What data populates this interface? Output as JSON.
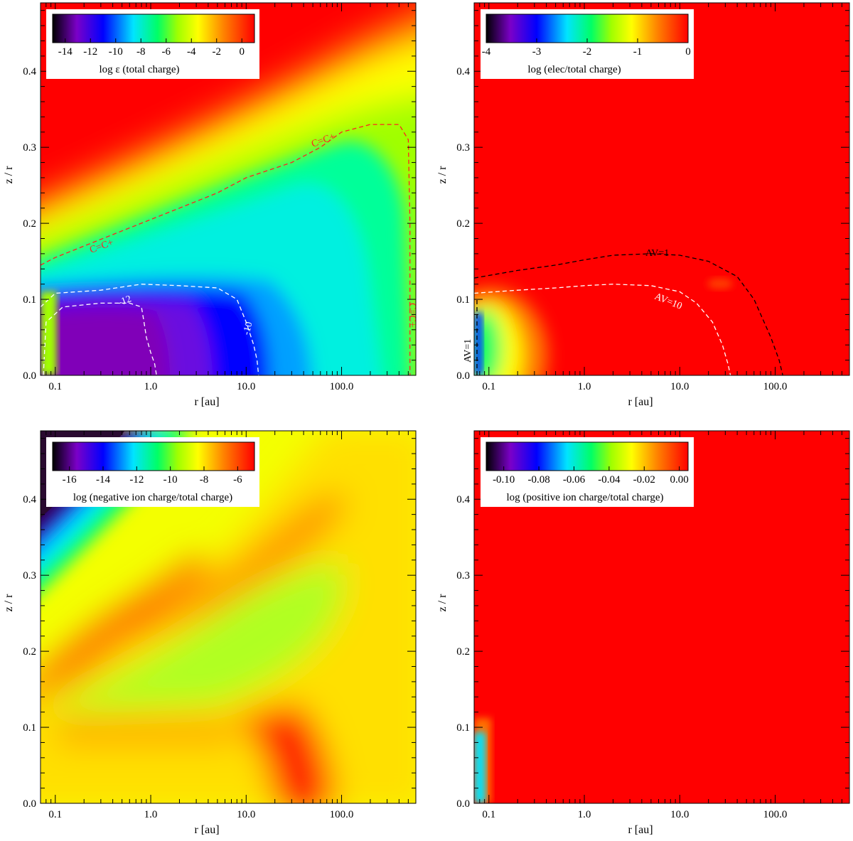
{
  "figure": {
    "xlabel": "r [au]",
    "ylabel": "z / r",
    "x_ticks": [
      "0.1",
      "1.0",
      "10.0",
      "100.0"
    ],
    "y_ticks": [
      "0.0",
      "0.1",
      "0.2",
      "0.3",
      "0.4"
    ],
    "colors": {
      "rainbow": [
        "#000000",
        "#7b00c8",
        "#0000ff",
        "#00e4ff",
        "#00ff66",
        "#a0ff00",
        "#ffff00",
        "#ff8000",
        "#ff0000"
      ],
      "red": "#ff0000",
      "contour_red": "#ff2020"
    }
  },
  "chart_data": [
    {
      "type": "heatmap",
      "panel": "top-left",
      "xlabel": "r [au]",
      "ylabel": "z / r",
      "xscale": "log",
      "xlim": [
        0.07,
        600
      ],
      "ylim": [
        0.0,
        0.49
      ],
      "colorbar": {
        "label": "log ε (total charge)",
        "ticks": [
          "-14",
          "-12",
          "-10",
          "-8",
          "-6",
          "-4",
          "-2",
          "0"
        ],
        "range": [
          -15,
          1
        ]
      },
      "contours": [
        {
          "label": "C=C+",
          "color": "#ff2020",
          "x": [
            0.07,
            0.1,
            0.25,
            0.5,
            1,
            2,
            5,
            10,
            30,
            60,
            100,
            200,
            400,
            500,
            520,
            520
          ],
          "y": [
            0.145,
            0.155,
            0.175,
            0.19,
            0.205,
            0.22,
            0.24,
            0.26,
            0.28,
            0.3,
            0.32,
            0.33,
            0.33,
            0.31,
            0.2,
            0.0
          ]
        },
        {
          "label": "-12",
          "color": "#ffffff",
          "x": [
            0.075,
            0.08,
            0.12,
            0.3,
            0.6,
            0.8,
            0.85,
            0.9,
            1.0,
            1.1,
            1.15
          ],
          "y": [
            0.0,
            0.07,
            0.09,
            0.095,
            0.095,
            0.09,
            0.07,
            0.05,
            0.03,
            0.015,
            0.0
          ]
        },
        {
          "label": "-10",
          "color": "#ffffff",
          "x": [
            0.07,
            0.1,
            0.3,
            0.8,
            2,
            5,
            8,
            10,
            12,
            13,
            13.5
          ],
          "y": [
            0.09,
            0.108,
            0.112,
            0.12,
            0.118,
            0.115,
            0.1,
            0.07,
            0.04,
            0.02,
            0.0
          ]
        }
      ]
    },
    {
      "type": "heatmap",
      "panel": "top-right",
      "xlabel": "r [au]",
      "ylabel": "z / r",
      "xscale": "log",
      "xlim": [
        0.07,
        600
      ],
      "ylim": [
        0.0,
        0.49
      ],
      "colorbar": {
        "label": "log (elec/total charge)",
        "ticks": [
          "-4",
          "-3",
          "-2",
          "-1",
          "0"
        ],
        "range": [
          -4,
          0
        ]
      },
      "contours": [
        {
          "label": "AV=1",
          "color": "#000000",
          "x": [
            0.07,
            0.2,
            0.5,
            1,
            2,
            5,
            10,
            20,
            40,
            60,
            90,
            110,
            120
          ],
          "y": [
            0.128,
            0.138,
            0.145,
            0.152,
            0.158,
            0.16,
            0.158,
            0.15,
            0.13,
            0.1,
            0.05,
            0.02,
            0.0
          ]
        },
        {
          "label": "AV=10",
          "color": "#ffffff",
          "x": [
            0.07,
            0.2,
            0.5,
            1,
            2,
            5,
            10,
            15,
            22,
            28,
            32,
            34
          ],
          "y": [
            0.108,
            0.112,
            0.115,
            0.118,
            0.12,
            0.118,
            0.11,
            0.095,
            0.07,
            0.04,
            0.015,
            0.0
          ]
        },
        {
          "label": "AV=1",
          "color": "#000000",
          "x": [
            0.075,
            0.075
          ],
          "y": [
            0.0,
            0.1
          ]
        }
      ]
    },
    {
      "type": "heatmap",
      "panel": "bottom-left",
      "xlabel": "r [au]",
      "ylabel": "z / r",
      "xscale": "log",
      "xlim": [
        0.07,
        600
      ],
      "ylim": [
        0.0,
        0.49
      ],
      "colorbar": {
        "label": "log (negative ion charge/total charge)",
        "ticks": [
          "-16",
          "-14",
          "-12",
          "-10",
          "-8",
          "-6"
        ],
        "range": [
          -17,
          -5
        ]
      }
    },
    {
      "type": "heatmap",
      "panel": "bottom-right",
      "xlabel": "r [au]",
      "ylabel": "z / r",
      "xscale": "log",
      "xlim": [
        0.07,
        600
      ],
      "ylim": [
        0.0,
        0.49
      ],
      "colorbar": {
        "label": "log (positive ion charge/total charge)",
        "ticks": [
          "-0.10",
          "-0.08",
          "-0.06",
          "-0.04",
          "-0.02",
          "0.00"
        ],
        "range": [
          -0.11,
          0.005
        ]
      }
    }
  ]
}
